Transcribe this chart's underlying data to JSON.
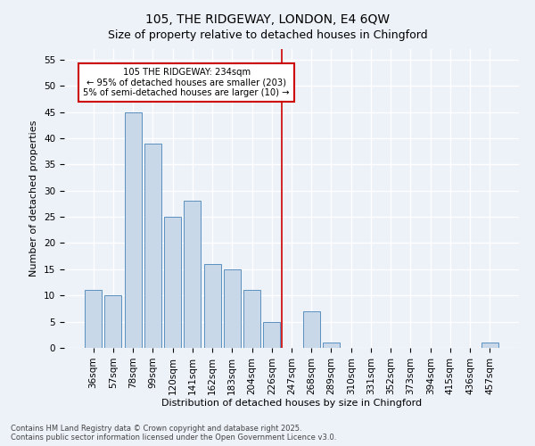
{
  "title": "105, THE RIDGEWAY, LONDON, E4 6QW",
  "subtitle": "Size of property relative to detached houses in Chingford",
  "xlabel": "Distribution of detached houses by size in Chingford",
  "ylabel": "Number of detached properties",
  "categories": [
    "36sqm",
    "57sqm",
    "78sqm",
    "99sqm",
    "120sqm",
    "141sqm",
    "162sqm",
    "183sqm",
    "204sqm",
    "226sqm",
    "247sqm",
    "268sqm",
    "289sqm",
    "310sqm",
    "331sqm",
    "352sqm",
    "373sqm",
    "394sqm",
    "415sqm",
    "436sqm",
    "457sqm"
  ],
  "values": [
    11,
    10,
    45,
    39,
    25,
    28,
    16,
    15,
    11,
    5,
    0,
    7,
    1,
    0,
    0,
    0,
    0,
    0,
    0,
    0,
    1
  ],
  "bar_color": "#c8d8e8",
  "bar_edge_color": "#5a90c0",
  "vline_x": 9.5,
  "vline_color": "#cc0000",
  "annotation_title": "105 THE RIDGEWAY: 234sqm",
  "annotation_line1": "← 95% of detached houses are smaller (203)",
  "annotation_line2": "5% of semi-detached houses are larger (10) →",
  "annotation_box_color": "#cc0000",
  "annotation_bg": "#ffffff",
  "ylim": [
    0,
    57
  ],
  "yticks": [
    0,
    5,
    10,
    15,
    20,
    25,
    30,
    35,
    40,
    45,
    50,
    55
  ],
  "footer1": "Contains HM Land Registry data © Crown copyright and database right 2025.",
  "footer2": "Contains public sector information licensed under the Open Government Licence v3.0.",
  "bg_color": "#edf1f8",
  "plot_bg_color": "#edf1f8",
  "grid_color": "#ffffff",
  "title_fontsize": 10,
  "subtitle_fontsize": 9,
  "axis_label_fontsize": 8,
  "tick_fontsize": 7.5,
  "footer_fontsize": 6
}
